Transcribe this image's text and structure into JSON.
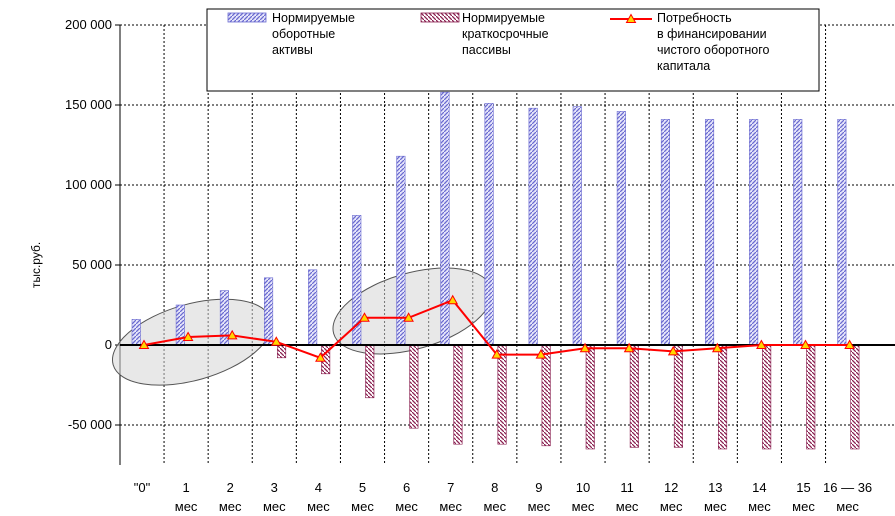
{
  "chart_data": {
    "type": "bar",
    "ylabel": "тыс.руб.",
    "ylim": [
      -75000,
      200000
    ],
    "yticks": [
      -50000,
      0,
      50000,
      100000,
      150000,
      200000
    ],
    "ytick_labels": [
      "-50 000",
      "0",
      "50 000",
      "100 000",
      "150 000",
      "200 000"
    ],
    "grid": true,
    "legend_position": "top",
    "categories": [
      {
        "line1": "\"0\"",
        "line2": ""
      },
      {
        "line1": "1",
        "line2": "мес"
      },
      {
        "line1": "2",
        "line2": "мес"
      },
      {
        "line1": "3",
        "line2": "мес"
      },
      {
        "line1": "4",
        "line2": "мес"
      },
      {
        "line1": "5",
        "line2": "мес"
      },
      {
        "line1": "6",
        "line2": "мес"
      },
      {
        "line1": "7",
        "line2": "мес"
      },
      {
        "line1": "8",
        "line2": "мес"
      },
      {
        "line1": "9",
        "line2": "мес"
      },
      {
        "line1": "10",
        "line2": "мес"
      },
      {
        "line1": "11",
        "line2": "мес"
      },
      {
        "line1": "12",
        "line2": "мес"
      },
      {
        "line1": "13",
        "line2": "мес"
      },
      {
        "line1": "14",
        "line2": "мес"
      },
      {
        "line1": "15",
        "line2": "мес"
      },
      {
        "line1": "16 — 36",
        "line2": "мес"
      }
    ],
    "series": [
      {
        "name": "Нормируемые оборотные активы",
        "legend_lines": [
          "Нормируемые",
          "оборотные",
          "активы"
        ],
        "kind": "bar",
        "color": "#6a6ad0",
        "values": [
          16000,
          25000,
          34000,
          42000,
          47000,
          81000,
          118000,
          158000,
          151000,
          148000,
          149000,
          146000,
          141000,
          141000,
          141000,
          141000,
          141000
        ]
      },
      {
        "name": "Нормируемые краткосрочные пассивы",
        "legend_lines": [
          "Нормируемые",
          "краткосрочные",
          "пассивы"
        ],
        "kind": "bar",
        "color": "#8a2050",
        "values": [
          0,
          0,
          0,
          -8000,
          -18000,
          -33000,
          -52000,
          -62000,
          -62000,
          -63000,
          -65000,
          -64000,
          -64000,
          -65000,
          -65000,
          -65000,
          -65000
        ]
      },
      {
        "name": "Потребность в финансировании чистого оборотного капитала",
        "legend_lines": [
          "Потребность",
          "в финансировании",
          "чистого оборотного",
          "капитала"
        ],
        "kind": "line",
        "color": "#ff0000",
        "marker_color": "#ffd700",
        "values": [
          0,
          5000,
          6000,
          2000,
          -8000,
          17000,
          17000,
          28000,
          -6000,
          -6000,
          -2000,
          -2000,
          -4000,
          -2000,
          0,
          0,
          0
        ]
      }
    ],
    "highlight_groups": [
      [
        0,
        2
      ],
      [
        5,
        7
      ]
    ]
  }
}
